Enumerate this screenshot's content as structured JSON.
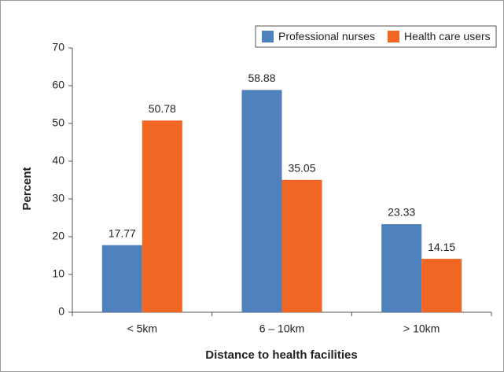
{
  "chart_data": {
    "type": "bar",
    "categories": [
      "< 5km",
      "6 – 10km",
      "> 10km"
    ],
    "series": [
      {
        "name": "Professional nurses",
        "color": "#4f81bd",
        "values": [
          17.77,
          58.88,
          23.33
        ]
      },
      {
        "name": "Health care users",
        "color": "#f26624",
        "values": [
          50.78,
          35.05,
          14.15
        ]
      }
    ],
    "ylim": [
      0,
      70
    ],
    "yticks": [
      0,
      10,
      20,
      30,
      40,
      50,
      60,
      70
    ],
    "xlabel": "Distance to health facilities",
    "ylabel": "Percent",
    "legend": "top-right",
    "grid": false
  }
}
